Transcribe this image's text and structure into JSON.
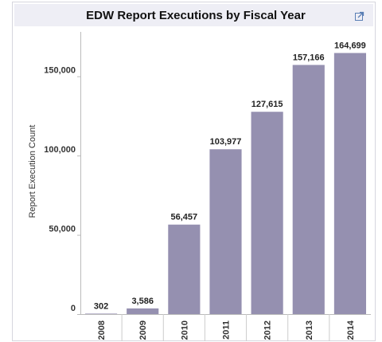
{
  "chart_data": {
    "type": "bar",
    "title": "EDW Report Executions by Fiscal Year",
    "y_label": "Report Execution Count",
    "categories": [
      "2008",
      "2009",
      "2010",
      "2011",
      "2012",
      "2013",
      "2014"
    ],
    "values": [
      302,
      3586,
      56457,
      103977,
      127615,
      157166,
      164699
    ],
    "value_labels": [
      "302",
      "3,586",
      "56,457",
      "103,977",
      "127,615",
      "157,166",
      "164,699"
    ],
    "color": "#9590b0",
    "ylim": [
      0,
      175000
    ],
    "yticks": [
      0,
      {
        "value": 50000,
        "label": "50,000"
      },
      {
        "value": 100000,
        "label": "100,000"
      },
      {
        "value": 150000,
        "label": "150,000"
      }
    ],
    "grid": false
  }
}
